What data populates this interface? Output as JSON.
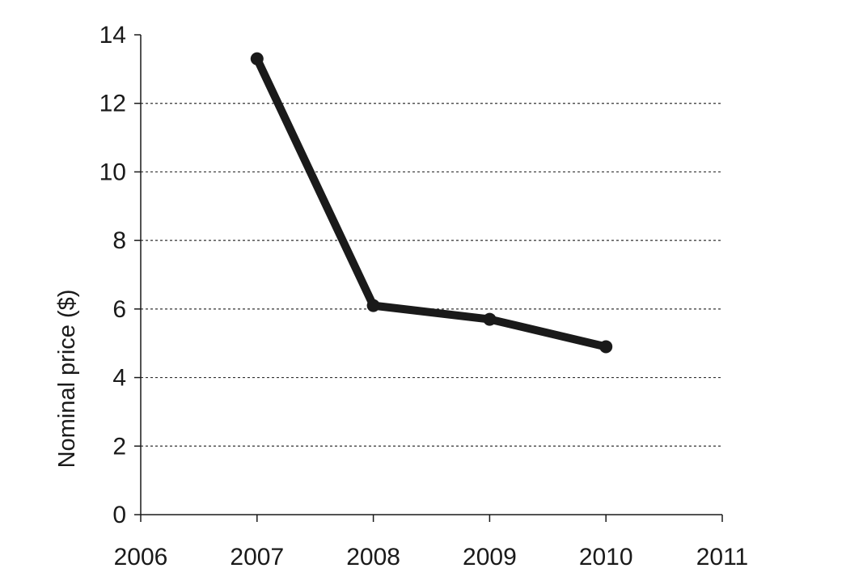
{
  "chart_data": {
    "type": "line",
    "title": "",
    "xlabel": "",
    "ylabel": "Nominal price ($)",
    "xlim": [
      2006,
      2011
    ],
    "ylim": [
      0,
      14
    ],
    "x_ticks": [
      2006,
      2007,
      2008,
      2009,
      2010,
      2011
    ],
    "y_ticks": [
      0,
      2,
      4,
      6,
      8,
      10,
      12,
      14
    ],
    "grid": "horizontal dotted",
    "legend": "none",
    "series": [
      {
        "x": [
          2007,
          2008,
          2009,
          2010
        ],
        "values": [
          13.3,
          6.1,
          5.7,
          4.9
        ],
        "color": "#1a1a1a"
      }
    ]
  }
}
